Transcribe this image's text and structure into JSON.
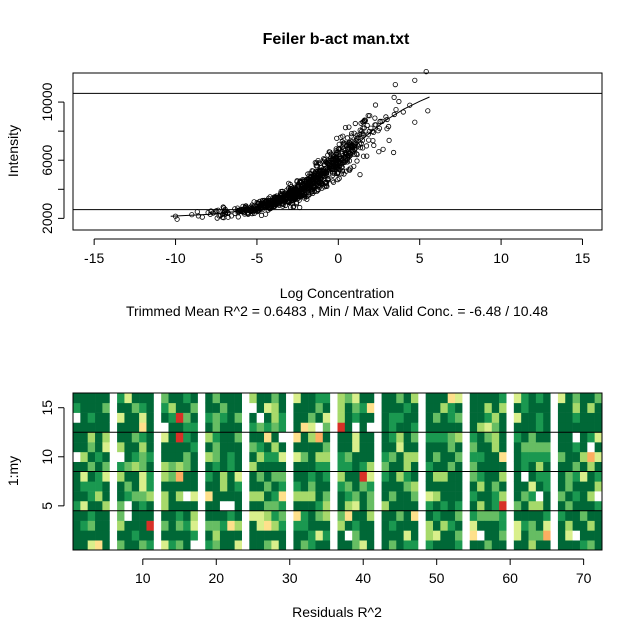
{
  "chart_data": [
    {
      "type": "scatter",
      "title": "Feiler b-act man.txt",
      "xlabel": "Log Concentration",
      "subtitle": "Trimmed Mean R^2 = 0.6483 , Min / Max Valid Conc. = -6.48 / 10.48",
      "ylabel": "Intensity",
      "xlim": [
        -16.3,
        16.2
      ],
      "ylim": [
        1200,
        12000
      ],
      "xticks": [
        "-15",
        "-10",
        "-5",
        "0",
        "5",
        "10",
        "15"
      ],
      "xtick_values": [
        -15,
        -10,
        -5,
        0,
        5,
        10,
        15
      ],
      "yticks": [
        "2000",
        "6000",
        "10000"
      ],
      "ytick_values": [
        2000,
        6000,
        10000
      ],
      "hlines": [
        2600,
        10600
      ],
      "point_count": 900,
      "curve": {
        "x": [
          -10.3,
          -8,
          -6,
          -5,
          -4,
          -3,
          -2,
          -1,
          0,
          1,
          2,
          3,
          4,
          5,
          5.6
        ],
        "y": [
          2150,
          2270,
          2500,
          2720,
          3050,
          3500,
          4150,
          5000,
          5950,
          6950,
          7950,
          8800,
          9500,
          10050,
          10350
        ]
      },
      "points_sample": [
        {
          "x": -10,
          "y": 2150
        },
        {
          "x": -9,
          "y": 2250
        },
        {
          "x": -8,
          "y": 2400
        },
        {
          "x": -6,
          "y": 2500
        },
        {
          "x": -5,
          "y": 2700
        },
        {
          "x": -3,
          "y": 3400
        },
        {
          "x": -1,
          "y": 4900
        },
        {
          "x": 0,
          "y": 6000
        },
        {
          "x": 1,
          "y": 7000
        },
        {
          "x": 2,
          "y": 8200
        },
        {
          "x": 3,
          "y": 8800
        },
        {
          "x": 3.5,
          "y": 11200
        },
        {
          "x": 4.7,
          "y": 11500
        },
        {
          "x": 5.5,
          "y": 9400
        }
      ]
    },
    {
      "type": "heatmap",
      "xlabel": "Residuals R^2",
      "ylabel": "1:my",
      "xlim": [
        0.5,
        72.5
      ],
      "ylim": [
        0.5,
        16.5
      ],
      "xticks": [
        "10",
        "20",
        "30",
        "40",
        "50",
        "60",
        "70"
      ],
      "xtick_values": [
        10,
        20,
        30,
        40,
        50,
        60,
        70
      ],
      "yticks": [
        "5",
        "10",
        "15"
      ],
      "ytick_values": [
        5,
        10,
        15
      ],
      "cols": 72,
      "rows": 16,
      "gap_columns": [
        6,
        12,
        18,
        24,
        30,
        36,
        42,
        48,
        54,
        60,
        66
      ],
      "hlines": [
        4.5,
        8.5,
        12.5
      ],
      "palette": [
        "#006837",
        "#1a9850",
        "#66bd63",
        "#a6d96a",
        "#d9ef8b",
        "#fee08b",
        "#fdae61",
        "#f46d43",
        "#d73027"
      ]
    }
  ]
}
